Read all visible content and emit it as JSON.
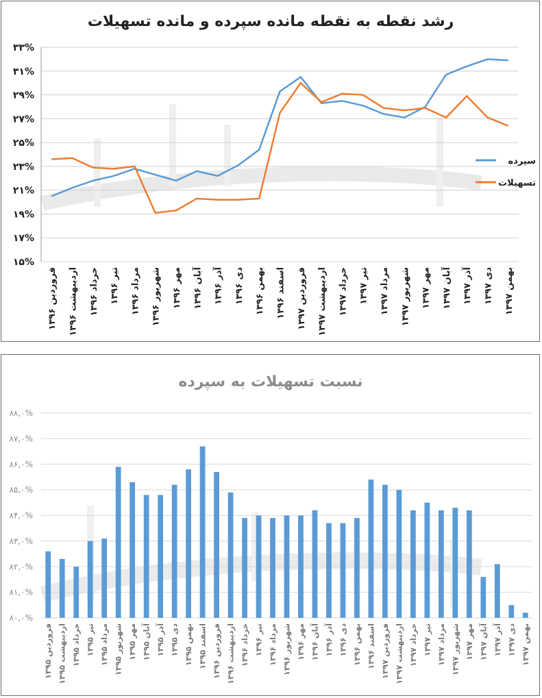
{
  "charts": [
    {
      "title": "رشد نقطه به نقطه مانده سپرده و مانده تسهیلات"
    },
    {
      "title": "نسبت تسهیلات به سپرده"
    }
  ],
  "chart_data": [
    {
      "type": "line",
      "title": "رشد نقطه به نقطه مانده سپرده و مانده تسهیلات",
      "categories": [
        "فروردین ۱۳۹۶",
        "اردیبهشت ۱۳۹۶",
        "خرداد ۱۳۹۶",
        "تیر ۱۳۹۶",
        "مرداد ۱۳۹۶",
        "شهریور ۱۳۹۶",
        "مهر ۱۳۹۶",
        "آبان ۱۳۹۶",
        "آذر ۱۳۹۶",
        "دی ۱۳۹۶",
        "بهمن ۱۳۹۶",
        "اسفند ۱۳۹۶",
        "فروردین ۱۳۹۷",
        "اردیبهشت ۱۳۹۷",
        "خرداد ۱۳۹۷",
        "تیر ۱۳۹۷",
        "مرداد ۱۳۹۷",
        "شهریور ۱۳۹۷",
        "مهر ۱۳۹۷",
        "آبان ۱۳۹۷",
        "آذر ۱۳۹۷",
        "دی ۱۳۹۷",
        "بهمن ۱۳۹۷"
      ],
      "ylim": [
        15,
        33
      ],
      "yticks": [
        "۱۵%",
        "۱۷%",
        "۱۹%",
        "۲۱%",
        "۲۳%",
        "۲۵%",
        "۲۷%",
        "۲۹%",
        "۳۱%",
        "۳۳%"
      ],
      "grid": true,
      "legend_position": "right",
      "series": [
        {
          "name": "سپرده",
          "color": "#5b9bd5",
          "values": [
            20.5,
            21.2,
            21.8,
            22.2,
            22.8,
            22.3,
            21.8,
            22.6,
            22.2,
            23.1,
            24.4,
            29.3,
            30.5,
            28.3,
            28.5,
            28.1,
            27.4,
            27.1,
            28.0,
            30.7,
            31.4,
            32.0,
            31.9
          ]
        },
        {
          "name": "تسهیلات",
          "color": "#ed7d31",
          "values": [
            23.6,
            23.7,
            22.9,
            22.8,
            23.0,
            19.1,
            19.3,
            20.3,
            20.2,
            20.2,
            20.3,
            27.5,
            30.0,
            28.4,
            29.1,
            29.0,
            27.9,
            27.7,
            27.9,
            27.1,
            28.9,
            27.1,
            26.4
          ]
        }
      ]
    },
    {
      "type": "bar",
      "title": "نسبت تسهیلات به سپرده",
      "categories": [
        "فروردین ۱۳۹۵",
        "اردیبهشت ۱۳۹۵",
        "خرداد ۱۳۹۵",
        "تیر ۱۳۹۵",
        "مرداد ۱۳۹۵",
        "شهریور ۱۳۹۵",
        "مهر ۱۳۹۵",
        "آبان ۱۳۹۵",
        "آذر ۱۳۹۵",
        "دی ۱۳۹۵",
        "بهمن ۱۳۹۵",
        "اسفند ۱۳۹۵",
        "فروردین ۱۳۹۶",
        "اردیبهشت ۱۳۹۶",
        "خرداد ۱۳۹۶",
        "تیر ۱۳۹۶",
        "مرداد ۱۳۹۶",
        "شهریور ۱۳۹۶",
        "مهر ۱۳۹۶",
        "آبان ۱۳۹۶",
        "آذر ۱۳۹۶",
        "دی ۱۳۹۶",
        "بهمن ۱۳۹۶",
        "اسفند ۱۳۹۶",
        "فروردین ۱۳۹۷",
        "اردیبهشت ۱۳۹۷",
        "خرداد ۱۳۹۷",
        "تیر ۱۳۹۷",
        "مرداد ۱۳۹۷",
        "شهریور ۱۳۹۷",
        "مهر ۱۳۹۷",
        "آبان ۱۳۹۷",
        "آذر ۱۳۹۷",
        "دی ۱۳۹۷",
        "بهمن ۱۳۹۷"
      ],
      "ylim": [
        80,
        88
      ],
      "yticks": [
        "۸۰,۰%",
        "۸۱,۰%",
        "۸۲,۰%",
        "۸۳,۰%",
        "۸۴,۰%",
        "۸۵,۰%",
        "۸۶,۰%",
        "۸۷,۰%",
        "۸۸,۰%"
      ],
      "grid": true,
      "color": "#5b9bd5",
      "values": [
        82.6,
        82.3,
        82.0,
        83.0,
        83.1,
        85.9,
        85.3,
        84.8,
        84.8,
        85.2,
        85.8,
        86.7,
        85.7,
        84.9,
        83.9,
        84.0,
        83.9,
        84.0,
        84.0,
        84.2,
        83.7,
        83.7,
        83.9,
        85.4,
        85.2,
        85.0,
        84.2,
        84.5,
        84.2,
        84.3,
        84.2,
        81.6,
        82.1,
        80.5,
        80.2
      ]
    }
  ]
}
